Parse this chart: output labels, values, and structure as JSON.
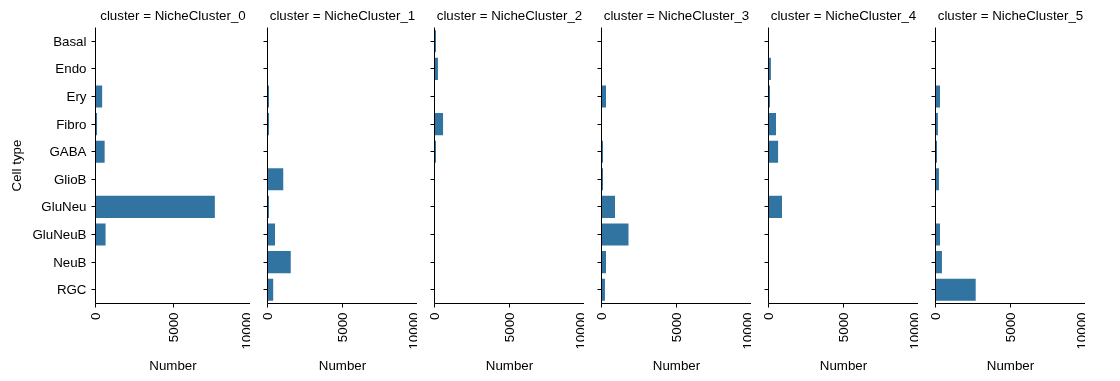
{
  "chart_data": [
    {
      "type": "bar",
      "orientation": "horizontal",
      "title": "cluster = NicheCluster_0",
      "xlabel": "Number",
      "ylabel": "Cell type",
      "categories": [
        "Basal",
        "Endo",
        "Ery",
        "Fibro",
        "GABA",
        "GlioB",
        "GluNeu",
        "GluNeuB",
        "NeuB",
        "RGC"
      ],
      "values": [
        null,
        null,
        430,
        100,
        590,
        null,
        7700,
        650,
        null,
        null
      ],
      "color": "#3274a1",
      "xlim": [
        0,
        10000
      ],
      "xticks": [
        0,
        5000,
        10000
      ]
    },
    {
      "type": "bar",
      "orientation": "horizontal",
      "title": "cluster = NicheCluster_1",
      "xlabel": "Number",
      "categories": [
        "Basal",
        "Endo",
        "Ery",
        "Fibro",
        "GABA",
        "GlioB",
        "GluNeu",
        "GluNeuB",
        "NeuB",
        "RGC"
      ],
      "values": [
        null,
        null,
        100,
        100,
        null,
        1050,
        100,
        500,
        1550,
        380
      ],
      "color": "#3274a1",
      "xlim": [
        0,
        10000
      ],
      "xticks": [
        0,
        5000,
        10000
      ],
      "tick_labels": "x"
    },
    {
      "type": "bar",
      "orientation": "horizontal",
      "title": "cluster = NicheCluster_2",
      "xlabel": "Number",
      "categories": [
        "Basal",
        "Endo",
        "Ery",
        "Fibro",
        "GABA",
        "GlioB",
        "GluNeu",
        "GluNeuB",
        "NeuB",
        "RGC"
      ],
      "values": [
        100,
        230,
        null,
        570,
        100,
        null,
        null,
        null,
        null,
        null
      ],
      "color": "#3274a1",
      "xlim": [
        0,
        10000
      ],
      "xticks": [
        0,
        5000,
        10000
      ],
      "tick_labels": "x"
    },
    {
      "type": "bar",
      "orientation": "horizontal",
      "title": "cluster = NicheCluster_3",
      "xlabel": "Number",
      "categories": [
        "Basal",
        "Endo",
        "Ery",
        "Fibro",
        "GABA",
        "GlioB",
        "GluNeu",
        "GluNeuB",
        "NeuB",
        "RGC"
      ],
      "values": [
        null,
        null,
        300,
        null,
        100,
        100,
        900,
        1800,
        300,
        230
      ],
      "color": "#3274a1",
      "xlim": [
        0,
        10000
      ],
      "xticks": [
        0,
        5000,
        10000
      ],
      "tick_labels": "x"
    },
    {
      "type": "bar",
      "orientation": "horizontal",
      "title": "cluster = NicheCluster_4",
      "xlabel": "Number",
      "categories": [
        "Basal",
        "Endo",
        "Ery",
        "Fibro",
        "GABA",
        "GlioB",
        "GluNeu",
        "GluNeuB",
        "NeuB",
        "RGC"
      ],
      "values": [
        null,
        160,
        100,
        500,
        640,
        null,
        900,
        null,
        null,
        null
      ],
      "color": "#3274a1",
      "xlim": [
        0,
        10000
      ],
      "xticks": [
        0,
        5000,
        10000
      ],
      "tick_labels": "x"
    },
    {
      "type": "bar",
      "orientation": "horizontal",
      "title": "cluster = NicheCluster_5",
      "xlabel": "Number",
      "categories": [
        "Basal",
        "Endo",
        "Ery",
        "Fibro",
        "GABA",
        "GlioB",
        "GluNeu",
        "GluNeuB",
        "NeuB",
        "RGC"
      ],
      "values": [
        null,
        null,
        300,
        160,
        100,
        230,
        null,
        300,
        430,
        2680
      ],
      "color": "#3274a1",
      "xlim": [
        0,
        10000
      ],
      "xticks": [
        0,
        5000,
        10000
      ],
      "tick_labels": "x"
    }
  ]
}
